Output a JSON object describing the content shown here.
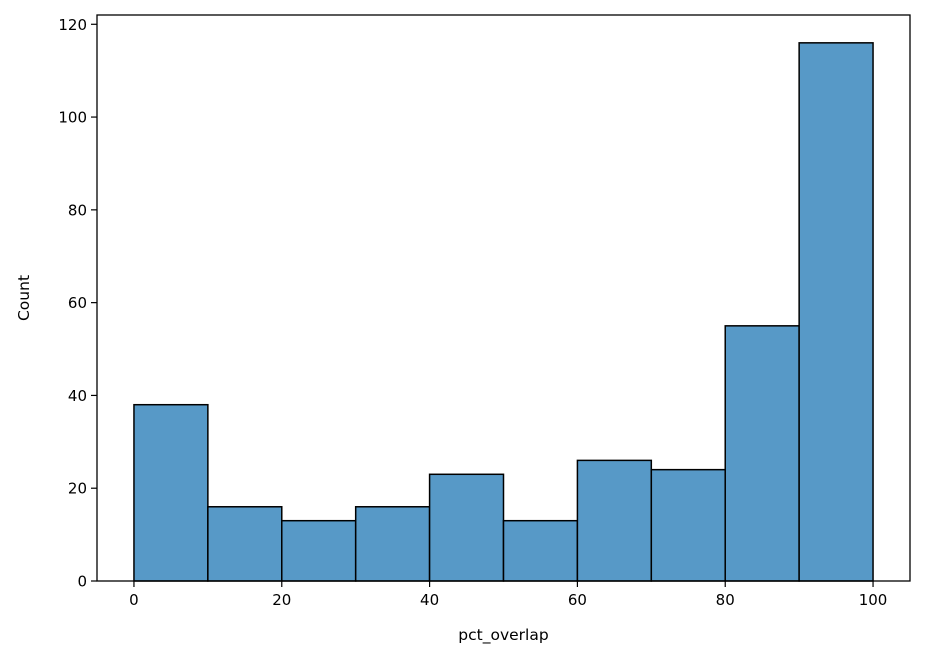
{
  "chart_data": {
    "type": "bar",
    "subtype": "histogram",
    "title": "",
    "xlabel": "pct_overlap",
    "ylabel": "Count",
    "bins": [
      {
        "x0": 0,
        "x1": 10,
        "count": 38
      },
      {
        "x0": 10,
        "x1": 20,
        "count": 16
      },
      {
        "x0": 20,
        "x1": 30,
        "count": 13
      },
      {
        "x0": 30,
        "x1": 40,
        "count": 16
      },
      {
        "x0": 40,
        "x1": 50,
        "count": 23
      },
      {
        "x0": 50,
        "x1": 60,
        "count": 13
      },
      {
        "x0": 60,
        "x1": 70,
        "count": 26
      },
      {
        "x0": 70,
        "x1": 80,
        "count": 24
      },
      {
        "x0": 80,
        "x1": 90,
        "count": 55
      },
      {
        "x0": 90,
        "x1": 100,
        "count": 116
      }
    ],
    "xlim": [
      -5,
      105
    ],
    "ylim": [
      0,
      122
    ],
    "xticks": [
      0,
      20,
      40,
      60,
      80,
      100
    ],
    "yticks": [
      0,
      20,
      40,
      60,
      80,
      100,
      120
    ],
    "grid": false,
    "bar_color": "#5799c7",
    "edge_color": "#000000"
  }
}
